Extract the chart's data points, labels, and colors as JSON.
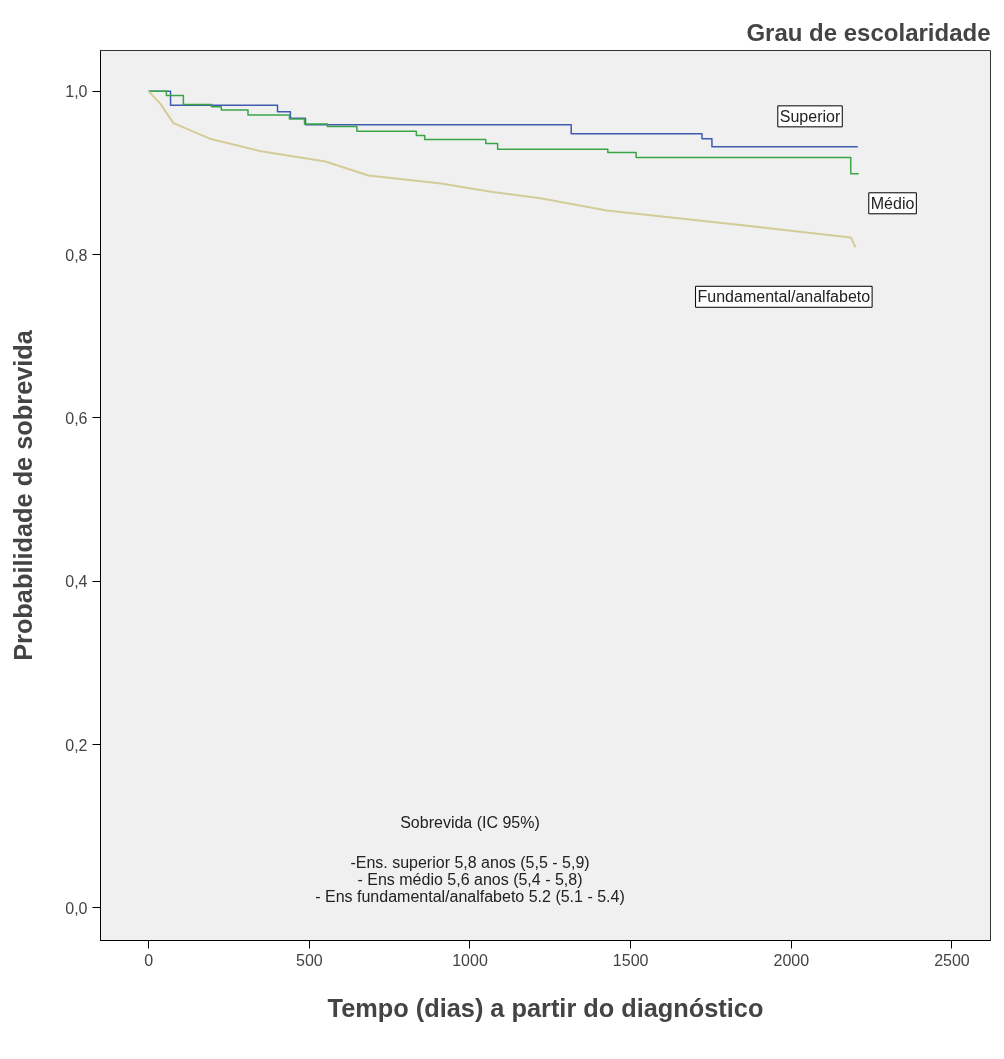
{
  "chart_data": {
    "type": "step",
    "title": "Grau de escolaridade",
    "xlabel": "Tempo (dias) a partir do diagnóstico",
    "ylabel": "Probabilidade de sobrevida",
    "xlim": [
      -150,
      2620
    ],
    "ylim": [
      -0.04,
      1.05
    ],
    "xticks": [
      0,
      500,
      1000,
      1500,
      2000,
      2500
    ],
    "yticks": [
      {
        "value": 0,
        "label": "0,0"
      },
      {
        "value": 0.2,
        "label": "0,2"
      },
      {
        "value": 0.4,
        "label": "0,4"
      },
      {
        "value": 0.6,
        "label": "0,6"
      },
      {
        "value": 0.8,
        "label": "0,8"
      },
      {
        "value": 1,
        "label": "1,0"
      }
    ],
    "grid": false,
    "series": [
      {
        "name": "Superior",
        "color": "#3e5bb0",
        "x": [
          0,
          68,
          401,
          441,
          488,
          1315,
          1722,
          1753,
          2207
        ],
        "values": [
          1.0,
          0.983,
          0.975,
          0.967,
          0.959,
          0.948,
          0.942,
          0.932,
          0.932
        ]
      },
      {
        "name": "Médio",
        "color": "#3aa545",
        "x": [
          0,
          55,
          108,
          195,
          226,
          309,
          438,
          485,
          556,
          648,
          833,
          859,
          1049,
          1086,
          1429,
          1517,
          2185,
          2210
        ],
        "values": [
          1.0,
          0.995,
          0.984,
          0.981,
          0.977,
          0.971,
          0.966,
          0.96,
          0.957,
          0.951,
          0.946,
          0.941,
          0.936,
          0.929,
          0.925,
          0.919,
          0.899,
          0.899
        ]
      },
      {
        "name": "Fundamental/analfabeto",
        "type": "line",
        "color": "#d3cc98",
        "x": [
          0,
          36,
          77,
          190,
          345,
          550,
          684,
          910,
          1065,
          1219,
          1426,
          1827,
          2185,
          2200
        ],
        "values": [
          1.0,
          0.985,
          0.961,
          0.942,
          0.927,
          0.914,
          0.897,
          0.887,
          0.877,
          0.869,
          0.854,
          0.837,
          0.821,
          0.809
        ]
      }
    ],
    "annotations": [
      "Sobrevida (IC 95%)",
      "-Ens. superior 5,8 anos (5,5 - 5,9)",
      "- Ens médio 5,6 anos (5,4 - 5,8)",
      "- Ens fundamental/analfabeto 5.2 (5.1 - 5.4)"
    ]
  }
}
